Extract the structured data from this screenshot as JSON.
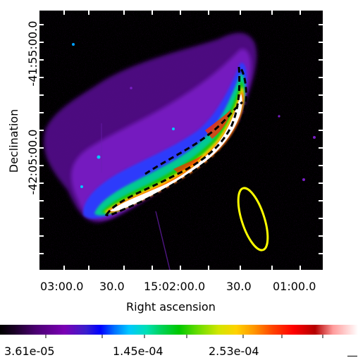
{
  "image": {
    "description_icon": "x-ray-supernova-remnant-shell",
    "y_axis_label": "Declination",
    "x_axis_label": "Right ascension",
    "y_ticks": [
      "-41:55:00.0",
      "-42:05:00.0"
    ],
    "x_ticks": [
      "03:00.0",
      "30.0",
      "15:02:00.0",
      "30.0",
      "01:00.0"
    ],
    "colorbar": {
      "labels": [
        "3.61e-05",
        "1.45e-04",
        "2.53e-04"
      ]
    },
    "colors": {
      "region_outline": "#000000",
      "background_region": "#ffff00",
      "background": "#000000"
    }
  }
}
